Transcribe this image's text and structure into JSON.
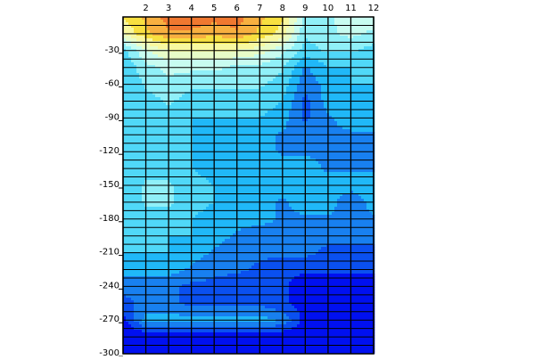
{
  "chart_data": {
    "type": "heatmap",
    "title": "",
    "xlabel": "",
    "ylabel": "",
    "x_ticks": [
      2,
      3,
      4,
      5,
      6,
      7,
      8,
      9,
      10,
      11,
      12
    ],
    "y_ticks": [
      -30,
      -60,
      -90,
      -120,
      -150,
      -180,
      -210,
      -240,
      -270,
      -300
    ],
    "xlim": [
      1,
      12
    ],
    "ylim": [
      -300,
      0
    ],
    "x_axis_position": "top",
    "grid": true,
    "grid_y_step": 7.5,
    "x": [
      1,
      2,
      3,
      4,
      5,
      6,
      7,
      8,
      9,
      10,
      11,
      12
    ],
    "y": [
      0,
      -15,
      -30,
      -45,
      -60,
      -75,
      -90,
      -105,
      -120,
      -135,
      -150,
      -165,
      -180,
      -195,
      -210,
      -225,
      -240,
      -255,
      -270,
      -285,
      -300
    ],
    "values": [
      [
        8,
        9,
        10,
        10,
        10,
        10,
        9,
        8,
        5,
        5,
        6,
        6
      ],
      [
        7,
        8.5,
        9.5,
        9.5,
        9,
        9.5,
        8.5,
        7.5,
        4.5,
        5,
        5.5,
        5
      ],
      [
        4,
        6,
        7,
        7,
        7,
        7,
        6.5,
        5.5,
        4,
        4.5,
        4.5,
        4
      ],
      [
        3.5,
        5,
        5.5,
        5.5,
        5.5,
        5,
        5,
        4.5,
        2.5,
        3.5,
        3.5,
        3.5
      ],
      [
        3.5,
        4.5,
        5,
        4.5,
        4.5,
        4.5,
        4.5,
        4,
        2,
        3,
        3.5,
        3.5
      ],
      [
        3.5,
        4,
        4.5,
        4,
        4,
        4,
        4,
        3.5,
        1.5,
        3,
        3,
        3
      ],
      [
        3.5,
        4,
        4,
        3.5,
        3.5,
        3.5,
        3.5,
        3,
        1.5,
        2.5,
        3,
        3
      ],
      [
        3.5,
        3.5,
        3.5,
        3.5,
        3,
        3,
        3,
        2.5,
        2.5,
        2.5,
        2.5,
        2.5
      ],
      [
        3.5,
        3.5,
        3.5,
        3.5,
        3,
        3,
        3,
        2.5,
        2.5,
        2.5,
        2.5,
        2.5
      ],
      [
        3.5,
        4,
        4,
        3.5,
        3,
        3,
        3,
        3,
        3,
        2.5,
        2.5,
        2.5
      ],
      [
        3.5,
        4.5,
        4.5,
        4,
        3.5,
        3,
        3,
        3,
        3,
        3,
        3,
        3
      ],
      [
        3.5,
        4.5,
        4.5,
        4,
        3.5,
        3,
        3,
        2.5,
        3,
        3,
        2,
        3
      ],
      [
        3.5,
        4,
        4,
        3.5,
        3,
        3,
        3,
        2.5,
        2.5,
        2.5,
        2.5,
        2.5
      ],
      [
        3.5,
        3.5,
        3.5,
        3.5,
        3,
        2.5,
        2,
        2,
        2,
        2,
        2,
        2
      ],
      [
        3.5,
        3.5,
        3.5,
        3,
        2.5,
        2,
        2,
        2,
        2,
        1.5,
        1.5,
        1.5
      ],
      [
        3,
        3,
        3,
        2.5,
        2,
        2,
        1.5,
        1,
        1,
        1,
        1,
        1
      ],
      [
        2,
        2,
        2,
        1.5,
        1.5,
        1,
        1,
        1,
        0.5,
        0.5,
        0.5,
        0.5
      ],
      [
        1.5,
        2,
        2,
        1.5,
        1.5,
        1.5,
        1.5,
        1,
        0.5,
        0.5,
        0.5,
        0.5
      ],
      [
        0.5,
        3,
        3,
        3,
        3,
        3,
        3,
        2.5,
        0.5,
        0.5,
        0.5,
        0.5
      ],
      [
        0,
        0,
        0,
        0,
        0,
        0,
        0,
        0,
        0,
        0,
        0,
        0
      ],
      [
        0,
        0,
        0,
        0,
        0,
        0,
        0,
        0,
        0,
        0,
        0,
        0
      ]
    ],
    "color_scale": [
      "#0010f0",
      "#0a50f0",
      "#1880f0",
      "#20b8f8",
      "#50d8f8",
      "#90f0f8",
      "#c8fcf0",
      "#e8fcc8",
      "#f8f8a0",
      "#f8e040",
      "#f8b040",
      "#f07830"
    ]
  }
}
